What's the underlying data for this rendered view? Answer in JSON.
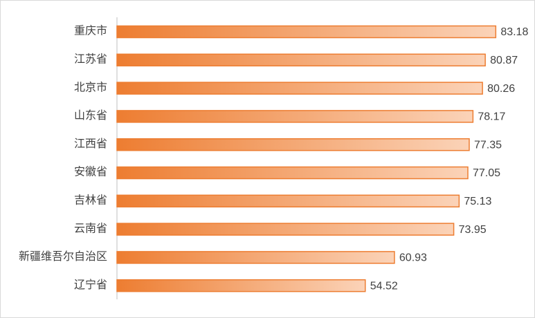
{
  "chart_data": {
    "type": "bar",
    "orientation": "horizontal",
    "categories": [
      "重庆市",
      "江苏省",
      "北京市",
      "山东省",
      "江西省",
      "安徽省",
      "吉林省",
      "云南省",
      "新疆维吾尔自治区",
      "辽宁省"
    ],
    "values": [
      83.18,
      80.87,
      80.26,
      78.17,
      77.35,
      77.05,
      75.13,
      73.95,
      60.93,
      54.52
    ],
    "color": "#ed7d31"
  }
}
